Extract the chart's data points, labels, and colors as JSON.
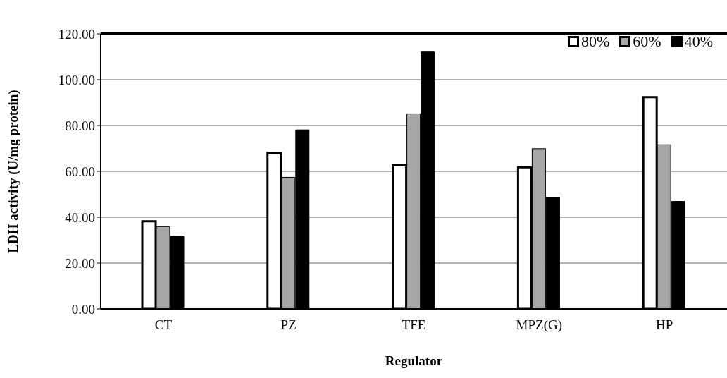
{
  "chart_data": {
    "type": "bar",
    "xlabel": "Regulator",
    "ylabel": "LDH activity (U/mg protein)",
    "categories": [
      "CT",
      "PZ",
      "TFE",
      "MPZ(G)",
      "HP"
    ],
    "series": [
      {
        "name": "80%",
        "color": "#ffffff",
        "values": [
          38.2,
          68.1,
          62.6,
          61.8,
          92.4
        ]
      },
      {
        "name": "60%",
        "color": "#a6a6a6",
        "values": [
          35.9,
          57.4,
          85.1,
          69.9,
          71.6
        ]
      },
      {
        "name": "40%",
        "color": "#000000",
        "values": [
          31.7,
          78.1,
          112.1,
          48.7,
          46.9
        ]
      }
    ],
    "ylim": [
      0,
      120
    ],
    "yticks": [
      {
        "value": 0,
        "label": "0.00"
      },
      {
        "value": 20,
        "label": "20.00"
      },
      {
        "value": 40,
        "label": "40.00"
      },
      {
        "value": 60,
        "label": "60.00"
      },
      {
        "value": 80,
        "label": "80.00"
      },
      {
        "value": 100,
        "label": "100.00"
      },
      {
        "value": 120,
        "label": "120.00"
      }
    ],
    "grid": "y",
    "legend": "top right"
  }
}
